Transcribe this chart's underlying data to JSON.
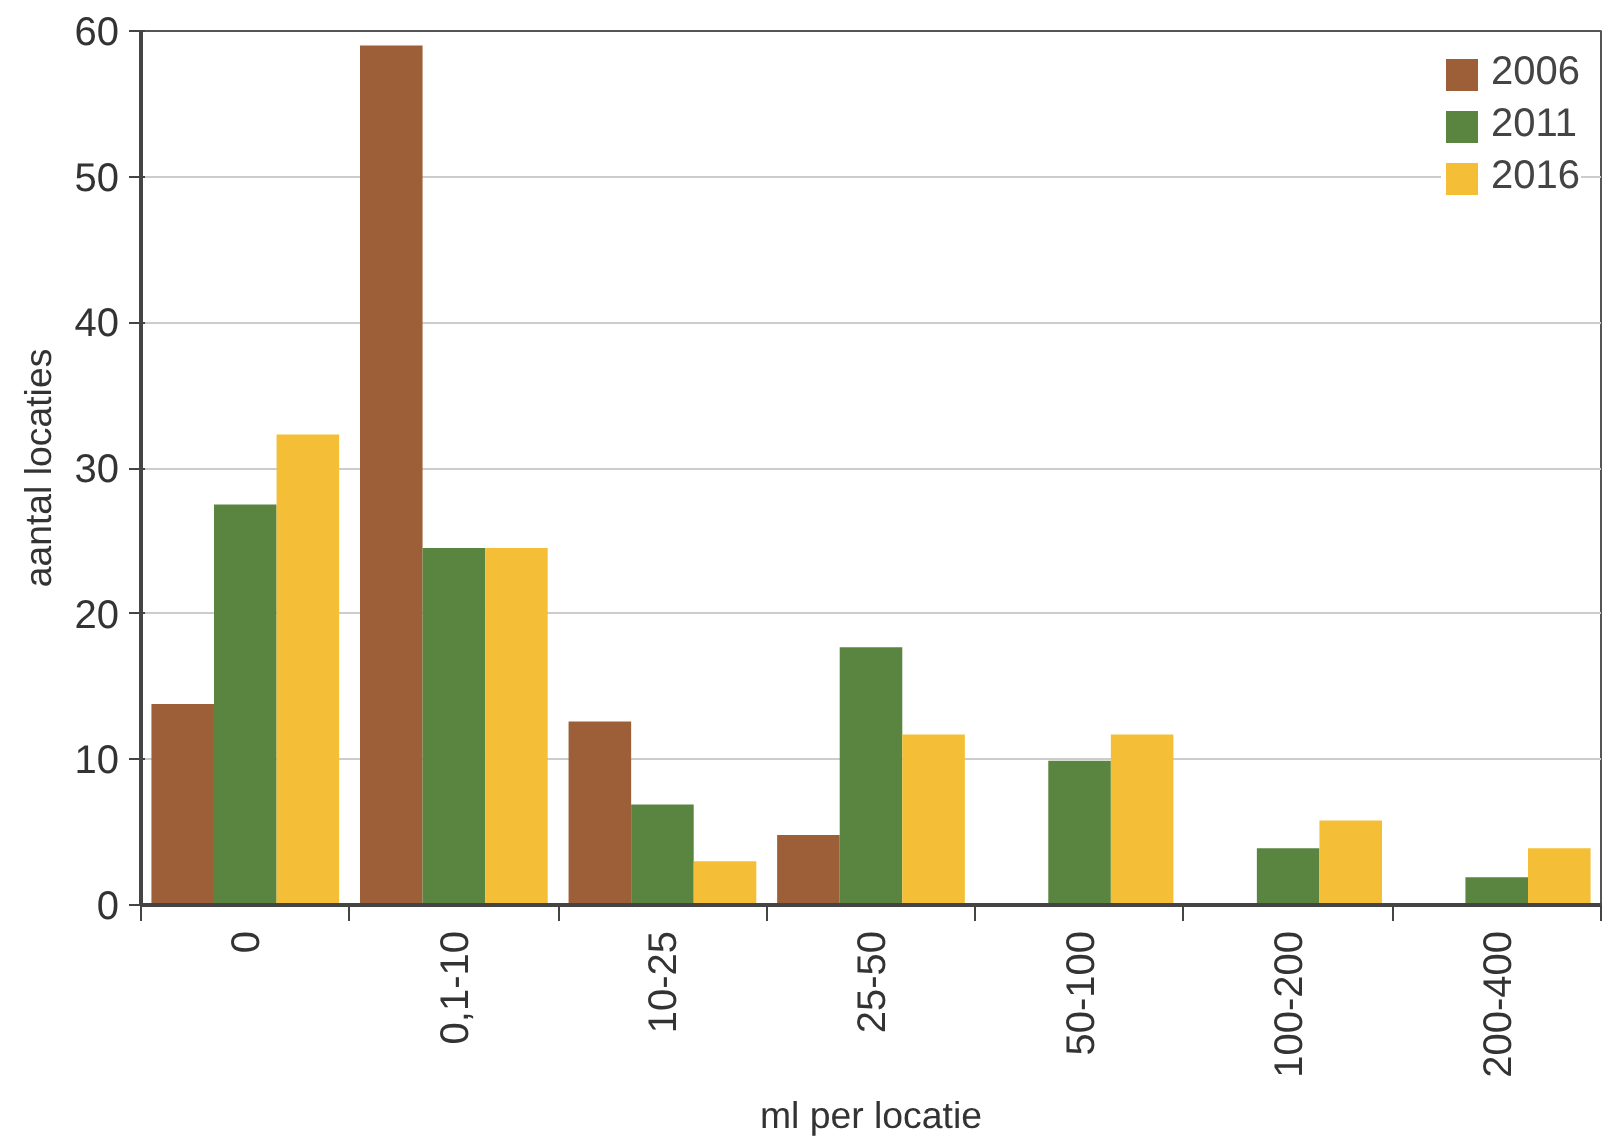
{
  "chart_data": {
    "type": "bar",
    "xlabel": "ml per locatie",
    "ylabel": "aantal locaties",
    "categories": [
      "0",
      "0,1-10",
      "10-25",
      "25-50",
      "50-100",
      "100-200",
      "200-400"
    ],
    "series": [
      {
        "name": "2006",
        "color": "#9c5f38",
        "values": [
          13.8,
          59,
          12.6,
          4.8,
          0,
          0,
          0
        ]
      },
      {
        "name": "2011",
        "color": "#5a8540",
        "values": [
          27.5,
          24.5,
          6.9,
          17.7,
          9.9,
          3.9,
          1.9
        ]
      },
      {
        "name": "2016",
        "color": "#f4bf36",
        "values": [
          32.3,
          24.5,
          3.0,
          11.7,
          11.7,
          5.8,
          3.9
        ]
      }
    ],
    "ylim": [
      0,
      60
    ],
    "yticks": [
      0,
      10,
      20,
      30,
      40,
      50,
      60
    ],
    "grid": "y",
    "legend": "top right"
  }
}
